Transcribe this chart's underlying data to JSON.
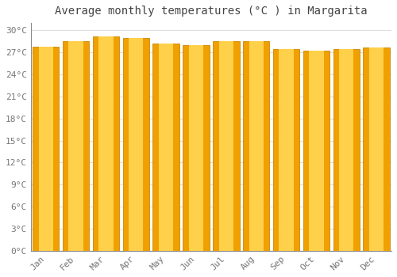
{
  "title": "Average monthly temperatures (°C ) in Margarita",
  "months": [
    "Jan",
    "Feb",
    "Mar",
    "Apr",
    "May",
    "Jun",
    "Jul",
    "Aug",
    "Sep",
    "Oct",
    "Nov",
    "Dec"
  ],
  "values": [
    27.8,
    28.5,
    29.2,
    29.0,
    28.2,
    28.0,
    28.5,
    28.5,
    27.5,
    27.2,
    27.5,
    27.7
  ],
  "ylim": [
    0,
    31
  ],
  "yticks": [
    0,
    3,
    6,
    9,
    12,
    15,
    18,
    21,
    24,
    27,
    30
  ],
  "bar_color_center": "#FFD04A",
  "bar_color_edge": "#F0A000",
  "bar_edge_color": "#C8880A",
  "background_color": "#FFFFFF",
  "plot_bg_color": "#FFFFFF",
  "grid_color": "#DDDDDD",
  "title_fontsize": 10,
  "tick_fontsize": 8,
  "title_color": "#444444",
  "tick_color": "#777777",
  "bar_width": 0.88
}
